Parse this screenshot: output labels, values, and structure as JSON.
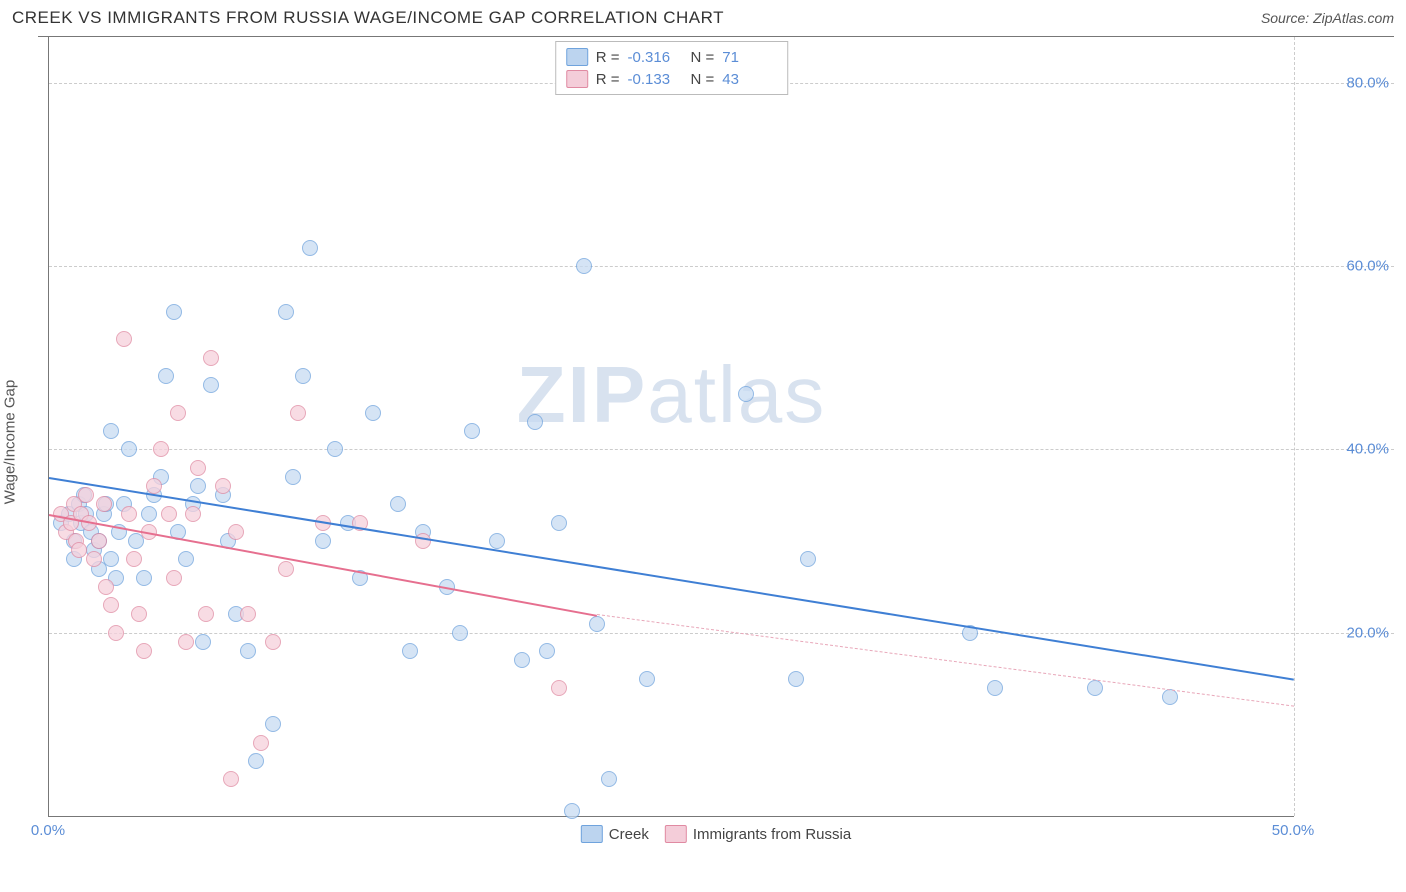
{
  "header": {
    "title": "CREEK VS IMMIGRANTS FROM RUSSIA WAGE/INCOME GAP CORRELATION CHART",
    "source": "Source: ZipAtlas.com"
  },
  "y_axis_label": "Wage/Income Gap",
  "watermark": {
    "bold": "ZIP",
    "rest": "atlas"
  },
  "chart": {
    "type": "scatter",
    "xlim": [
      0,
      50
    ],
    "ylim": [
      0,
      85
    ],
    "x_ticks": [
      {
        "v": 0,
        "label": "0.0%"
      },
      {
        "v": 50,
        "label": "50.0%"
      }
    ],
    "y_ticks": [
      {
        "v": 20,
        "label": "20.0%"
      },
      {
        "v": 40,
        "label": "40.0%"
      },
      {
        "v": 60,
        "label": "60.0%"
      },
      {
        "v": 80,
        "label": "80.0%"
      }
    ],
    "grid_color": "#cccccc",
    "background_color": "#ffffff",
    "marker_radius": 8,
    "series": [
      {
        "name": "Creek",
        "fill": "#c7dbf2",
        "stroke": "#6fa3dd",
        "swatch_fill": "#bcd4ef",
        "swatch_stroke": "#6fa3dd",
        "R": "-0.316",
        "N": "71",
        "trend": {
          "x1": 0,
          "y1": 37,
          "x2": 50,
          "y2": 15,
          "color": "#3f7fd4"
        },
        "points": [
          [
            0.5,
            32
          ],
          [
            0.8,
            33
          ],
          [
            1.0,
            30
          ],
          [
            1.0,
            28
          ],
          [
            1.2,
            34
          ],
          [
            1.3,
            32
          ],
          [
            1.4,
            35
          ],
          [
            1.5,
            33
          ],
          [
            1.7,
            31
          ],
          [
            1.8,
            29
          ],
          [
            2.0,
            27
          ],
          [
            2.0,
            30
          ],
          [
            2.2,
            33
          ],
          [
            2.3,
            34
          ],
          [
            2.5,
            42
          ],
          [
            2.5,
            28
          ],
          [
            2.7,
            26
          ],
          [
            2.8,
            31
          ],
          [
            3.0,
            34
          ],
          [
            3.2,
            40
          ],
          [
            3.5,
            30
          ],
          [
            3.8,
            26
          ],
          [
            4.0,
            33
          ],
          [
            4.2,
            35
          ],
          [
            4.5,
            37
          ],
          [
            4.7,
            48
          ],
          [
            5.0,
            55
          ],
          [
            5.2,
            31
          ],
          [
            5.5,
            28
          ],
          [
            5.8,
            34
          ],
          [
            6.0,
            36
          ],
          [
            6.2,
            19
          ],
          [
            6.5,
            47
          ],
          [
            7.0,
            35
          ],
          [
            7.2,
            30
          ],
          [
            7.5,
            22
          ],
          [
            8.0,
            18
          ],
          [
            8.3,
            6
          ],
          [
            9.0,
            10
          ],
          [
            9.5,
            55
          ],
          [
            9.8,
            37
          ],
          [
            10.2,
            48
          ],
          [
            10.5,
            62
          ],
          [
            11.0,
            30
          ],
          [
            11.5,
            40
          ],
          [
            12.0,
            32
          ],
          [
            12.5,
            26
          ],
          [
            13.0,
            44
          ],
          [
            14.0,
            34
          ],
          [
            14.5,
            18
          ],
          [
            15.0,
            31
          ],
          [
            16.0,
            25
          ],
          [
            16.5,
            20
          ],
          [
            17.0,
            42
          ],
          [
            18.0,
            30
          ],
          [
            19.0,
            17
          ],
          [
            19.5,
            43
          ],
          [
            20.0,
            18
          ],
          [
            20.5,
            32
          ],
          [
            21.0,
            0.5
          ],
          [
            21.5,
            60
          ],
          [
            22.0,
            21
          ],
          [
            22.5,
            4
          ],
          [
            24.0,
            15
          ],
          [
            28.0,
            46
          ],
          [
            30.0,
            15
          ],
          [
            30.5,
            28
          ],
          [
            37.0,
            20
          ],
          [
            38.0,
            14
          ],
          [
            42.0,
            14
          ],
          [
            45.0,
            13
          ]
        ]
      },
      {
        "name": "Immigrants from Russia",
        "fill": "#f6d1dc",
        "stroke": "#e08aa2",
        "swatch_fill": "#f4cdd9",
        "swatch_stroke": "#e08aa2",
        "R": "-0.133",
        "N": "43",
        "trend": {
          "x1": 0,
          "y1": 33,
          "x2": 22,
          "y2": 22,
          "color": "#e66f8f"
        },
        "trend_dash": {
          "x1": 22,
          "y1": 22,
          "x2": 50,
          "y2": 12,
          "color": "#e8a7b9"
        },
        "points": [
          [
            0.5,
            33
          ],
          [
            0.7,
            31
          ],
          [
            0.9,
            32
          ],
          [
            1.0,
            34
          ],
          [
            1.1,
            30
          ],
          [
            1.2,
            29
          ],
          [
            1.3,
            33
          ],
          [
            1.5,
            35
          ],
          [
            1.6,
            32
          ],
          [
            1.8,
            28
          ],
          [
            2.0,
            30
          ],
          [
            2.2,
            34
          ],
          [
            2.3,
            25
          ],
          [
            2.5,
            23
          ],
          [
            2.7,
            20
          ],
          [
            3.0,
            52
          ],
          [
            3.2,
            33
          ],
          [
            3.4,
            28
          ],
          [
            3.6,
            22
          ],
          [
            3.8,
            18
          ],
          [
            4.0,
            31
          ],
          [
            4.2,
            36
          ],
          [
            4.5,
            40
          ],
          [
            4.8,
            33
          ],
          [
            5.0,
            26
          ],
          [
            5.2,
            44
          ],
          [
            5.5,
            19
          ],
          [
            5.8,
            33
          ],
          [
            6.0,
            38
          ],
          [
            6.3,
            22
          ],
          [
            6.5,
            50
          ],
          [
            7.0,
            36
          ],
          [
            7.3,
            4
          ],
          [
            7.5,
            31
          ],
          [
            8.0,
            22
          ],
          [
            8.5,
            8
          ],
          [
            9.0,
            19
          ],
          [
            9.5,
            27
          ],
          [
            10.0,
            44
          ],
          [
            11.0,
            32
          ],
          [
            12.5,
            32
          ],
          [
            15.0,
            30
          ],
          [
            20.5,
            14
          ]
        ]
      }
    ]
  },
  "legend_bottom": [
    {
      "label": "Creek",
      "fill": "#bcd4ef",
      "stroke": "#6fa3dd"
    },
    {
      "label": "Immigrants from Russia",
      "fill": "#f4cdd9",
      "stroke": "#e08aa2"
    }
  ]
}
